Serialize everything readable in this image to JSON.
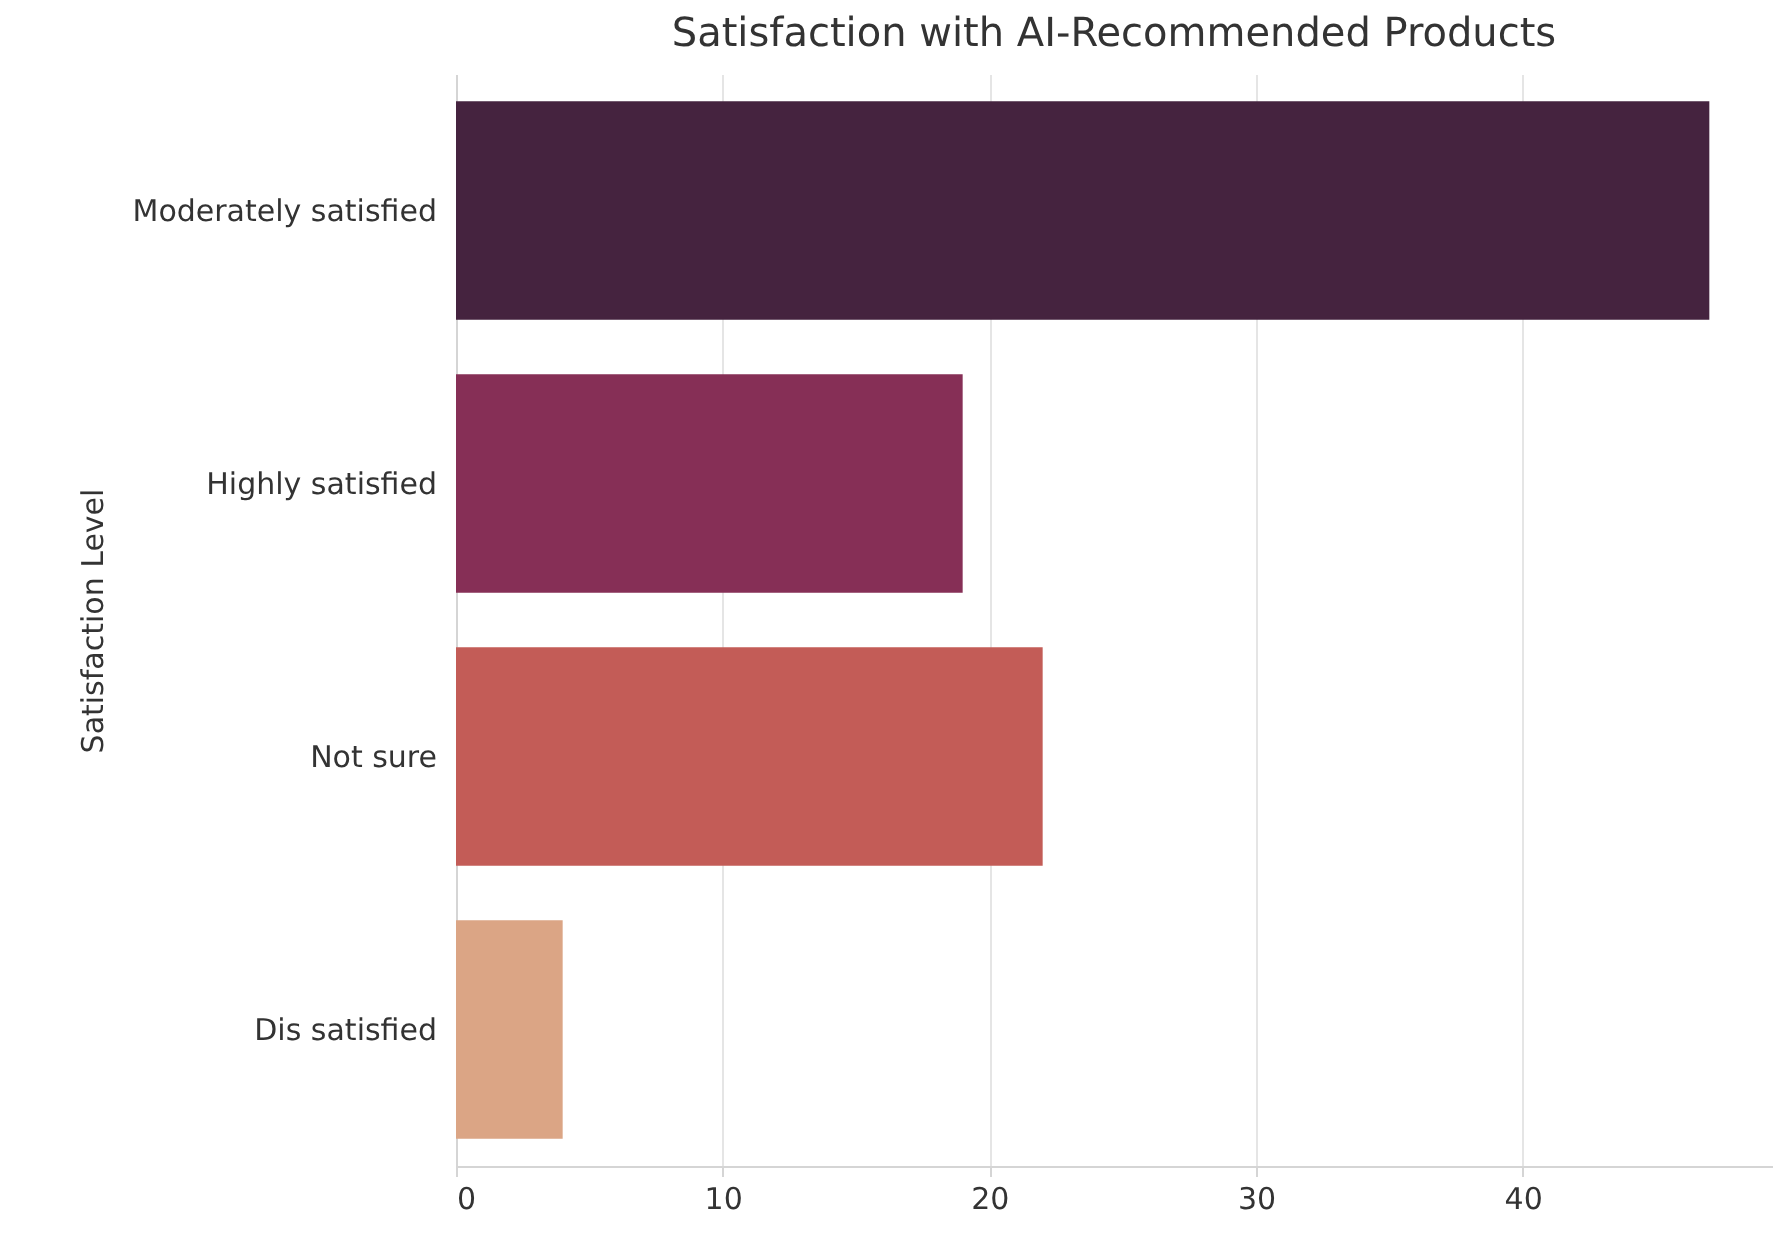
{
  "chart_data": {
    "type": "bar",
    "orientation": "horizontal",
    "title": "Satisfaction with AI-Recommended Products",
    "ylabel": "Satisfaction Level",
    "categories": [
      "Moderately satisfied",
      "Highly satisfied",
      "Not sure",
      "Dis satisfied"
    ],
    "values": [
      47,
      19,
      22,
      4
    ],
    "colors": [
      "#45233f",
      "#862f56",
      "#c35c57",
      "#dba585"
    ],
    "xlim": [
      0,
      49.35
    ],
    "xticks": [
      0,
      10,
      20,
      30,
      40
    ],
    "grid": "x"
  }
}
